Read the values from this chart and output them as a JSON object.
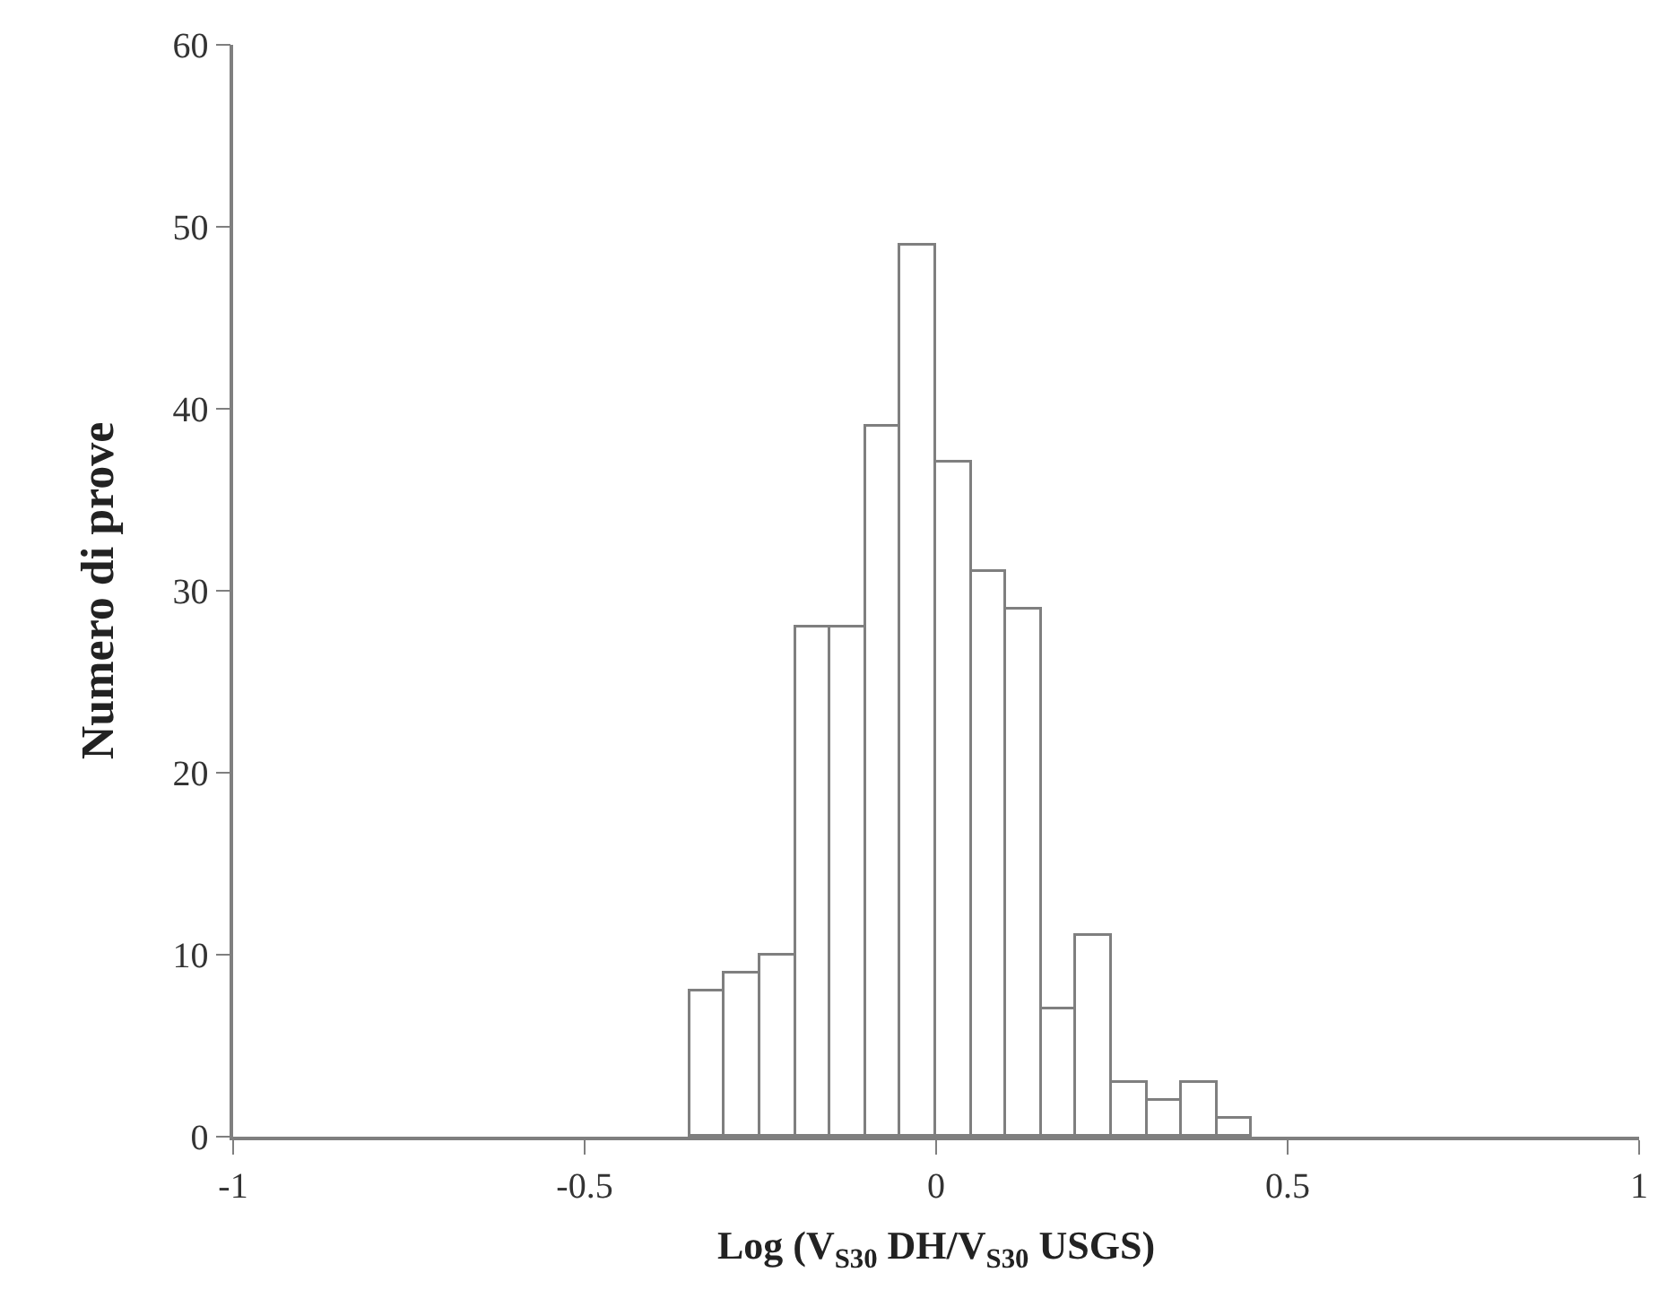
{
  "chart_data": {
    "type": "histogram",
    "xlabel": "Log (V$_{S30}$ DH/V$_{S30}$ USGS)",
    "ylabel": "Numero di prove",
    "bins": [
      -0.35,
      -0.3,
      -0.25,
      -0.2,
      -0.15,
      -0.1,
      -0.05,
      0,
      0.05,
      0.1,
      0.15,
      0.2,
      0.25,
      0.3,
      0.35,
      0.4,
      0.45
    ],
    "values": [
      8,
      9,
      10,
      28,
      28,
      39,
      49,
      37,
      31,
      29,
      7,
      11,
      3,
      2,
      3,
      1
    ],
    "color": "#ffffff",
    "xlim": [
      -1,
      1
    ],
    "xticks": [
      -1,
      -0.5,
      0,
      0.5,
      1
    ],
    "ylim": [
      0,
      60
    ],
    "yticks": [
      0,
      10,
      20,
      30,
      40,
      50,
      60
    ]
  }
}
